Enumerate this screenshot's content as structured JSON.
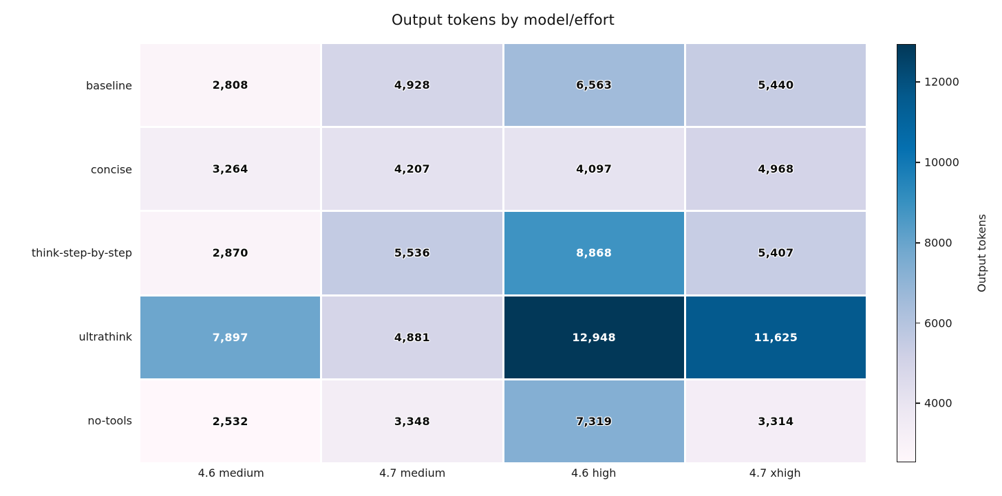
{
  "chart_data": {
    "type": "heatmap",
    "title": "Output tokens by model/effort",
    "rows": [
      "baseline",
      "concise",
      "think-step-by-step",
      "ultrathink",
      "no-tools"
    ],
    "columns": [
      "4.6 medium",
      "4.7 medium",
      "4.6 high",
      "4.7 xhigh"
    ],
    "values": [
      [
        2808,
        4928,
        6563,
        5440
      ],
      [
        3264,
        4207,
        4097,
        4968
      ],
      [
        2870,
        5536,
        8868,
        5407
      ],
      [
        7897,
        4881,
        12948,
        11625
      ],
      [
        2532,
        3348,
        7319,
        3314
      ]
    ],
    "value_labels": [
      [
        "2,808",
        "4,928",
        "6,563",
        "5,440"
      ],
      [
        "3,264",
        "4,207",
        "4,097",
        "4,968"
      ],
      [
        "2,870",
        "5,536",
        "8,868",
        "5,407"
      ],
      [
        "7,897",
        "4,881",
        "12,948",
        "11,625"
      ],
      [
        "2,532",
        "3,348",
        "7,319",
        "3,314"
      ]
    ],
    "vmin": 2532,
    "vmax": 12948,
    "colormap": {
      "name": "PuBu",
      "stops": [
        {
          "pos": 0.0,
          "color": "#fff7fb"
        },
        {
          "pos": 0.125,
          "color": "#ece7f2"
        },
        {
          "pos": 0.25,
          "color": "#d0d1e6"
        },
        {
          "pos": 0.375,
          "color": "#a6bddb"
        },
        {
          "pos": 0.5,
          "color": "#74a9cf"
        },
        {
          "pos": 0.625,
          "color": "#3690c0"
        },
        {
          "pos": 0.75,
          "color": "#0570b0"
        },
        {
          "pos": 0.875,
          "color": "#045a8d"
        },
        {
          "pos": 1.0,
          "color": "#023858"
        }
      ]
    },
    "colorbar": {
      "label": "Output tokens",
      "ticks": [
        4000,
        6000,
        8000,
        10000,
        12000
      ]
    },
    "annotation_text_threshold": 0.5,
    "cell_text_colors": {
      "dark": "#0b0b0b",
      "light": "#ffffff"
    },
    "legend_position": "right",
    "grid": false
  }
}
